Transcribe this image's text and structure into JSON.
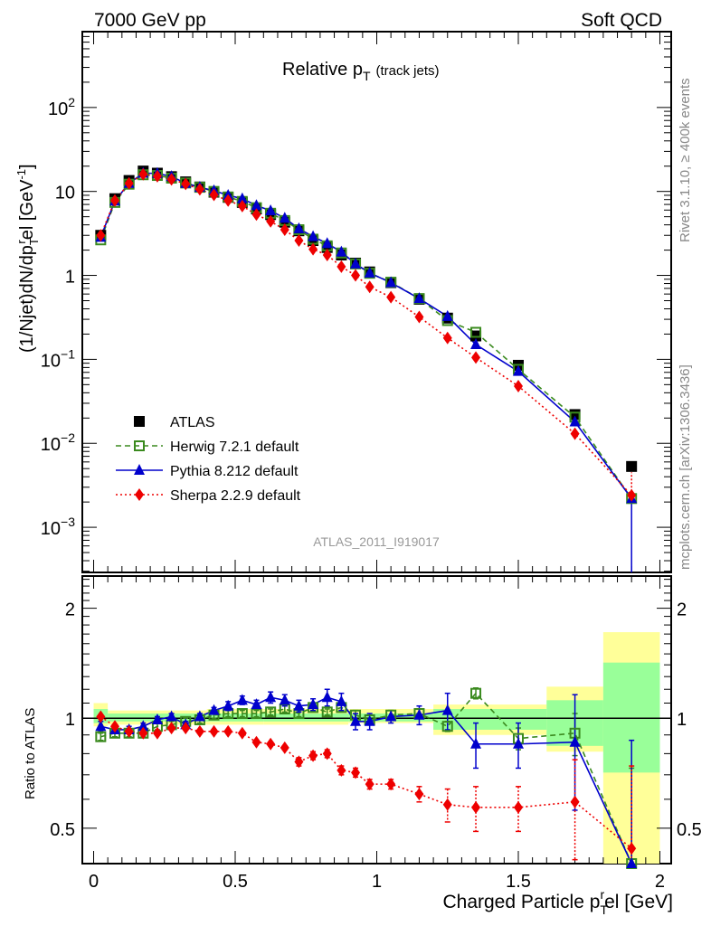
{
  "header": {
    "left": "7000 GeV pp",
    "right": "Soft QCD"
  },
  "side_text": {
    "rivet": "Rivet 3.1.10, ≥ 400k events",
    "mcplots": "mcplots.cern.ch [arXiv:1306.3436]"
  },
  "chart_data": [
    {
      "type": "scatter",
      "title": "Relative p_T (track jets)",
      "title_main": "Relative p",
      "title_sub": "T",
      "title_note": "(track jets)",
      "analysis_id": "ATLAS_2011_I919017",
      "ylabel": "(1/Njet)dN/dp_T^rel [GeV^-1]",
      "yscale": "log",
      "ylim": [
        0.00029,
        800
      ],
      "xlim": [
        -0.04,
        2.04
      ],
      "ytick_labels": [
        {
          "value": 100,
          "base": "10",
          "exp": "2"
        },
        {
          "value": 10,
          "base": "10",
          "exp": ""
        },
        {
          "value": 1,
          "base": "1",
          "exp": ""
        },
        {
          "value": 0.1,
          "base": "10",
          "exp": "−1"
        },
        {
          "value": 0.01,
          "base": "10",
          "exp": "−2"
        },
        {
          "value": 0.001,
          "base": "10",
          "exp": "−3"
        }
      ],
      "legend_position": "lower-left",
      "x": [
        0.025,
        0.075,
        0.125,
        0.175,
        0.225,
        0.275,
        0.325,
        0.375,
        0.425,
        0.475,
        0.525,
        0.575,
        0.625,
        0.675,
        0.725,
        0.775,
        0.825,
        0.875,
        0.925,
        0.975,
        1.05,
        1.15,
        1.25,
        1.35,
        1.5,
        1.7,
        1.9
      ],
      "series": [
        {
          "name": "ATLAS",
          "marker": "square-filled",
          "color": "#000000",
          "line": "none",
          "values": [
            3.0,
            8.2,
            13.5,
            17.5,
            16.5,
            15.0,
            13.0,
            11.3,
            9.8,
            8.5,
            7.4,
            6.2,
            5.3,
            4.3,
            3.4,
            2.6,
            2.15,
            1.75,
            1.4,
            1.1,
            0.82,
            0.52,
            0.31,
            0.19,
            0.085,
            0.022,
            0.0053
          ]
        },
        {
          "name": "Herwig 7.2.1 default",
          "marker": "square-open",
          "color": "#3a8a1e",
          "line": "dashed",
          "values": [
            2.65,
            7.4,
            12.2,
            15.8,
            15.5,
            14.4,
            12.6,
            11.2,
            10.0,
            8.6,
            7.6,
            6.4,
            5.5,
            4.5,
            3.5,
            2.7,
            2.25,
            1.85,
            1.37,
            1.06,
            0.83,
            0.53,
            0.29,
            0.21,
            0.076,
            0.0205,
            0.0022
          ]
        },
        {
          "name": "Pythia 8.212 default",
          "marker": "triangle",
          "color": "#0000cc",
          "line": "solid",
          "values": [
            2.85,
            7.7,
            12.5,
            16.5,
            16.4,
            15.1,
            12.5,
            11.2,
            10.2,
            9.0,
            8.2,
            6.8,
            5.9,
            4.8,
            3.6,
            2.9,
            2.4,
            1.9,
            1.37,
            1.07,
            0.82,
            0.53,
            0.325,
            0.15,
            0.072,
            0.018,
            0.0022
          ]
        },
        {
          "name": "Sherpa 2.2.9 default",
          "marker": "diamond",
          "color": "#ee0000",
          "line": "dotted",
          "values": [
            3.0,
            7.8,
            12.5,
            16.0,
            15.2,
            13.9,
            12.3,
            10.6,
            9.1,
            7.8,
            6.7,
            5.3,
            4.4,
            3.5,
            2.6,
            2.05,
            1.75,
            1.27,
            1.0,
            0.73,
            0.55,
            0.32,
            0.18,
            0.105,
            0.048,
            0.013,
            0.0024
          ]
        }
      ]
    },
    {
      "type": "scatter",
      "ylabel": "Ratio to ATLAS",
      "xlabel": "Charged Particle p_T^rel [GeV]",
      "xlabel_main": "Charged Particle p",
      "xlabel_sub": "T",
      "xlabel_sup": "r",
      "xlabel_tail": "el [GeV]",
      "yscale": "log",
      "ylim": [
        0.4,
        2.45
      ],
      "xlim": [
        -0.04,
        2.04
      ],
      "reference_line": 1,
      "xtick_labels": [
        "0",
        "0.5",
        "1",
        "1.5",
        "2"
      ],
      "xtick_values": [
        0,
        0.5,
        1,
        1.5,
        2
      ],
      "ytick_labels": [
        "2",
        "1",
        "0.5"
      ],
      "ytick_values": [
        2,
        1,
        0.5
      ],
      "uncertainty_bands": {
        "bins": [
          [
            0.0,
            0.05
          ],
          [
            0.05,
            0.4
          ],
          [
            0.4,
            0.6
          ],
          [
            0.6,
            0.9
          ],
          [
            0.9,
            1.2
          ],
          [
            1.2,
            1.6
          ],
          [
            1.6,
            1.8
          ],
          [
            1.8,
            2.0
          ]
        ],
        "inner_green": [
          [
            0.97,
            1.06
          ],
          [
            0.98,
            1.03
          ],
          [
            0.98,
            1.03
          ],
          [
            0.98,
            1.03
          ],
          [
            0.98,
            1.03
          ],
          [
            0.93,
            1.06
          ],
          [
            0.84,
            1.12
          ],
          [
            0.71,
            1.42
          ]
        ],
        "outer_yellow": [
          [
            0.95,
            1.1
          ],
          [
            0.96,
            1.05
          ],
          [
            0.96,
            1.06
          ],
          [
            0.96,
            1.06
          ],
          [
            0.97,
            1.06
          ],
          [
            0.9,
            1.09
          ],
          [
            0.81,
            1.22
          ],
          [
            0.4,
            1.72
          ]
        ],
        "green_color": "#99ff99",
        "yellow_color": "#ffff99"
      },
      "series": [
        {
          "name": "Herwig 7.2.1 default",
          "color": "#3a8a1e",
          "values": [
            0.89,
            0.91,
            0.91,
            0.91,
            0.95,
            0.96,
            0.98,
            0.99,
            1.02,
            1.03,
            1.03,
            1.03,
            1.04,
            1.06,
            1.03,
            1.07,
            1.04,
            1.07,
            1.02,
            0.99,
            1.02,
            1.03,
            0.95,
            1.17,
            0.88,
            0.91,
            0.38
          ],
          "err": [
            0.02,
            0.02,
            0.02,
            0.02,
            0.02,
            0.02,
            0.02,
            0.02,
            0.02,
            0.02,
            0.02,
            0.02,
            0.02,
            0.02,
            0.02,
            0.02,
            0.02,
            0.02,
            0.03,
            0.03,
            0.03,
            0.03,
            0.03,
            0.04,
            0.06,
            0.12,
            0.35
          ]
        },
        {
          "name": "Pythia 8.212 default",
          "color": "#0000cc",
          "values": [
            0.95,
            0.93,
            0.93,
            0.95,
            0.99,
            1.01,
            0.96,
            1.01,
            1.05,
            1.08,
            1.12,
            1.09,
            1.14,
            1.12,
            1.08,
            1.09,
            1.14,
            1.11,
            0.98,
            0.98,
            1.01,
            1.02,
            1.05,
            0.85,
            0.85,
            0.86,
            0.37
          ],
          "err": [
            0.03,
            0.02,
            0.02,
            0.02,
            0.02,
            0.02,
            0.02,
            0.02,
            0.02,
            0.03,
            0.03,
            0.03,
            0.04,
            0.04,
            0.04,
            0.04,
            0.06,
            0.06,
            0.05,
            0.05,
            0.04,
            0.06,
            0.12,
            0.12,
            0.12,
            0.3,
            0.5
          ]
        },
        {
          "name": "Sherpa 2.2.9 default",
          "color": "#ee0000",
          "values": [
            1.01,
            0.95,
            0.92,
            0.91,
            0.91,
            0.94,
            0.94,
            0.92,
            0.92,
            0.92,
            0.91,
            0.86,
            0.85,
            0.83,
            0.76,
            0.79,
            0.8,
            0.72,
            0.71,
            0.66,
            0.66,
            0.62,
            0.58,
            0.57,
            0.57,
            0.59,
            0.44
          ],
          "err": [
            0.01,
            0.01,
            0.01,
            0.01,
            0.01,
            0.01,
            0.01,
            0.01,
            0.01,
            0.01,
            0.01,
            0.01,
            0.01,
            0.01,
            0.02,
            0.02,
            0.02,
            0.02,
            0.02,
            0.02,
            0.02,
            0.03,
            0.06,
            0.08,
            0.08,
            0.18,
            0.3
          ]
        }
      ]
    }
  ]
}
